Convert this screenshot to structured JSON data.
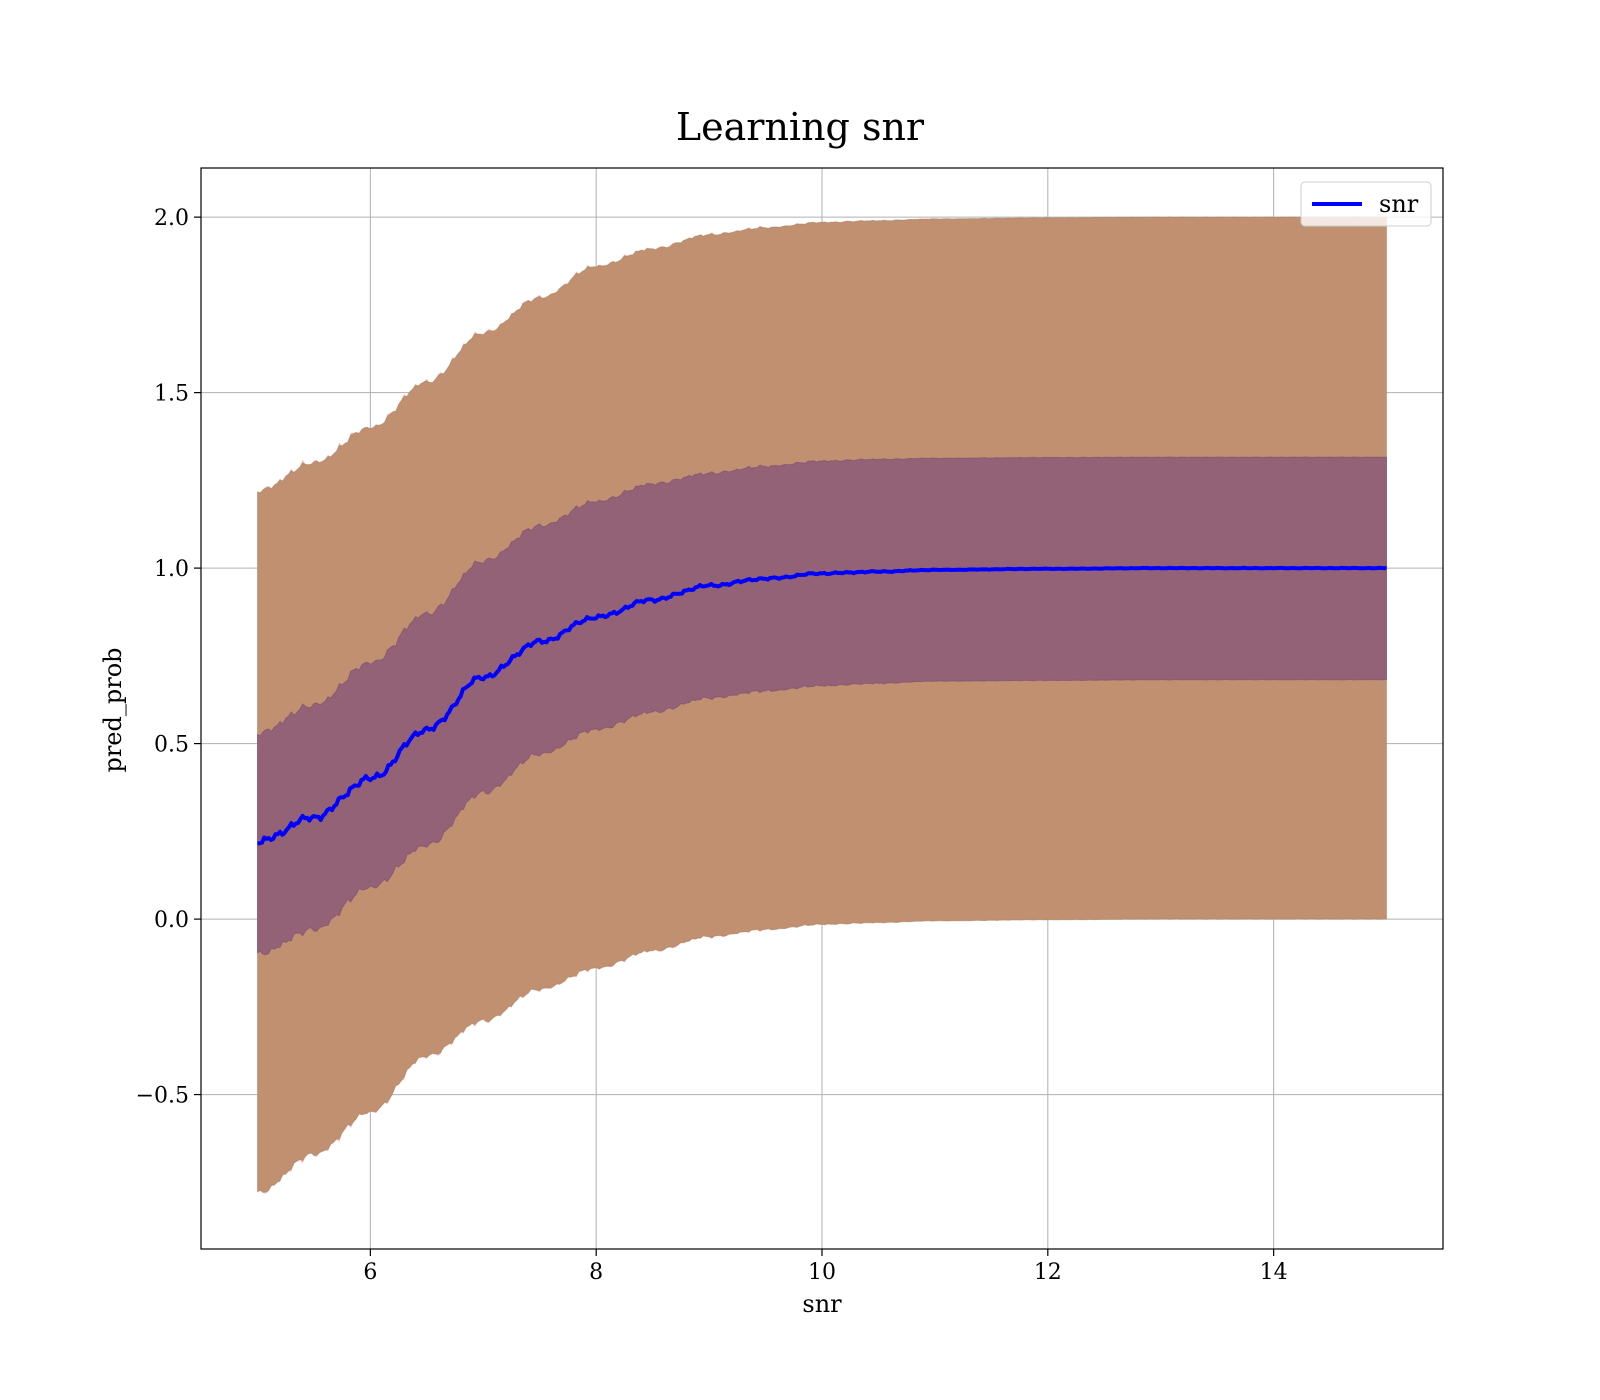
{
  "chart_data": {
    "type": "area",
    "title": "Learning snr",
    "xlabel": "snr",
    "ylabel": "pred_prob",
    "xlim": [
      4.5,
      15.5
    ],
    "ylim": [
      -0.94,
      2.14
    ],
    "x_ticks": [
      6,
      8,
      10,
      12,
      14
    ],
    "x_tick_labels": [
      "6",
      "8",
      "10",
      "12",
      "14"
    ],
    "y_ticks": [
      -0.5,
      0.0,
      0.5,
      1.0,
      1.5,
      2.0
    ],
    "y_tick_labels": [
      "−0.5",
      "0.0",
      "0.5",
      "1.0",
      "1.5",
      "2.0"
    ],
    "grid": true,
    "legend": {
      "position": "top-right",
      "entries": [
        "snr"
      ]
    },
    "colors": {
      "mean_line": "#0000ff",
      "outer_band": "#c09070",
      "outer_band_edge": "#f08080",
      "inner_band": "#8c5a78",
      "grid": "#b0b0b0"
    },
    "series": [
      {
        "name": "snr",
        "x": [
          5.0,
          5.5,
          6.0,
          6.5,
          7.0,
          7.5,
          8.0,
          8.5,
          9.0,
          9.5,
          10.0,
          10.5,
          11.0,
          12.0,
          13.0,
          14.0,
          15.0
        ],
        "y": [
          0.22,
          0.29,
          0.4,
          0.54,
          0.69,
          0.79,
          0.86,
          0.91,
          0.95,
          0.97,
          0.985,
          0.99,
          0.995,
          0.998,
          1.0,
          1.0,
          1.0
        ]
      }
    ],
    "bands": [
      {
        "label": "outer",
        "x": [
          5.0,
          5.5,
          6.0,
          6.5,
          7.0,
          7.5,
          8.0,
          8.5,
          9.0,
          9.5,
          10.0,
          10.5,
          11.0,
          12.0,
          13.0,
          14.0,
          15.0
        ],
        "lower": [
          -0.78,
          -0.67,
          -0.55,
          -0.39,
          -0.29,
          -0.2,
          -0.14,
          -0.09,
          -0.05,
          -0.03,
          -0.015,
          -0.01,
          -0.005,
          -0.002,
          0.0,
          0.0,
          0.0
        ],
        "upper": [
          1.22,
          1.3,
          1.4,
          1.53,
          1.67,
          1.77,
          1.86,
          1.91,
          1.95,
          1.97,
          1.985,
          1.99,
          1.995,
          1.998,
          2.0,
          2.0,
          2.0
        ]
      },
      {
        "label": "inner",
        "x": [
          5.0,
          5.5,
          6.0,
          6.5,
          7.0,
          7.5,
          8.0,
          8.5,
          9.0,
          9.5,
          10.0,
          10.5,
          11.0,
          12.0,
          13.0,
          14.0,
          15.0
        ],
        "lower": [
          -0.1,
          -0.03,
          0.09,
          0.21,
          0.36,
          0.47,
          0.54,
          0.59,
          0.63,
          0.65,
          0.665,
          0.672,
          0.678,
          0.68,
          0.682,
          0.682,
          0.682
        ],
        "upper": [
          0.53,
          0.61,
          0.73,
          0.87,
          1.02,
          1.12,
          1.19,
          1.24,
          1.27,
          1.29,
          1.305,
          1.31,
          1.313,
          1.315,
          1.316,
          1.316,
          1.316
        ]
      }
    ]
  }
}
